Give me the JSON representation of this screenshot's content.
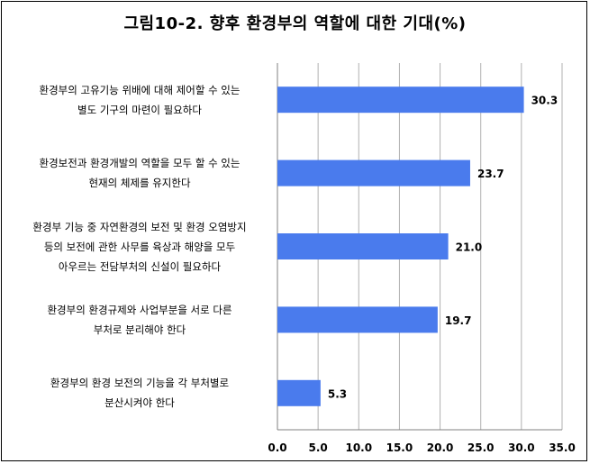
{
  "chart_data": {
    "type": "bar",
    "orientation": "horizontal",
    "title": "그림10-2. 향후 환경부의 역할에 대한 기대(%)",
    "categories": [
      [
        "환경부의 고유기능 위배에 대해 제어할 수 있는",
        "별도 기구의 마련이 필요하다"
      ],
      [
        "환경보전과 환경개발의 역할을 모두 할 수 있는",
        "현재의 체제를 유지한다"
      ],
      [
        "환경부 기능 중 자연환경의 보전 및 환경 오염방지",
        "등의 보전에 관한 사무를 육상과 해양을 모두",
        "아우르는 전담부처의 신설이 필요하다"
      ],
      [
        "환경부의 환경규제와 사업부분을 서로 다른",
        "부처로 분리해야 한다"
      ],
      [
        "환경부의 환경 보전의 기능을 각 부처별로",
        "분산시켜야 한다"
      ]
    ],
    "values": [
      30.3,
      23.7,
      21.0,
      19.7,
      5.3
    ],
    "value_labels": [
      "30.3",
      "23.7",
      "21.0",
      "19.7",
      "5.3"
    ],
    "xlim": [
      0,
      35
    ],
    "ticks": [
      "0.0",
      "5.0",
      "10.0",
      "15.0",
      "20.0",
      "25.0",
      "30.0",
      "35.0"
    ],
    "grid": "vertical",
    "bar_color": "#4a7bed",
    "grid_color": "#b0b0b0"
  }
}
